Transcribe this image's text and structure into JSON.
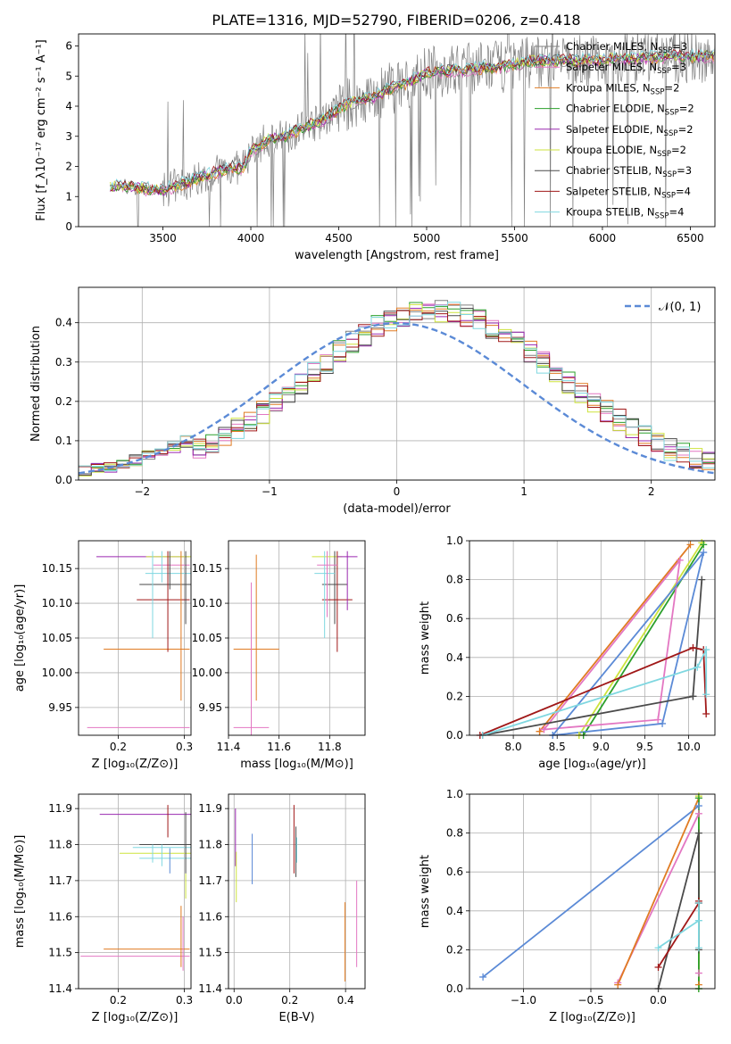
{
  "figure": {
    "suptitle": "PLATE=1316, MJD=52790, FIBERID=0206, z=0.418"
  },
  "legend_entries": [
    {
      "label": "Chabrier MILES, N",
      "sub": "SSP",
      "tail": "=3",
      "color": "#808080"
    },
    {
      "label": "Salpeter MILES, N",
      "sub": "SSP",
      "tail": "=3",
      "color": "#e377c2"
    },
    {
      "label": "Kroupa MILES, N",
      "sub": "SSP",
      "tail": "=2",
      "color": "#e07b22"
    },
    {
      "label": "Chabrier ELODIE, N",
      "sub": "SSP",
      "tail": "=2",
      "color": "#2ca02c"
    },
    {
      "label": "Salpeter ELODIE, N",
      "sub": "SSP",
      "tail": "=2",
      "color": "#9a28b0"
    },
    {
      "label": "Kroupa ELODIE, N",
      "sub": "SSP",
      "tail": "=2",
      "color": "#cde33c"
    },
    {
      "label": "Chabrier STELIB, N",
      "sub": "SSP",
      "tail": "=3",
      "color": "#4a4a4a"
    },
    {
      "label": "Salpeter STELIB, N",
      "sub": "SSP",
      "tail": "=4",
      "color": "#a01818"
    },
    {
      "label": "Kroupa STELIB, N",
      "sub": "SSP",
      "tail": "=4",
      "color": "#7fd7e0"
    }
  ],
  "chart_data": [
    {
      "id": "spectrum",
      "type": "line",
      "xlabel": "wavelength [Angstrom, rest frame]",
      "ylabel": "Flux [f_λ10⁻¹⁷ erg cm⁻² s⁻¹ A⁻¹]",
      "xlim": [
        3020,
        6640
      ],
      "ylim": [
        0,
        6.4
      ],
      "xticks": [
        3500,
        4000,
        4500,
        5000,
        5500,
        6000,
        6500
      ],
      "yticks": [
        0,
        1,
        2,
        3,
        4,
        5,
        6
      ],
      "continuum_x": [
        3200,
        3300,
        3400,
        3500,
        3600,
        3700,
        3800,
        3900,
        3950,
        4000,
        4100,
        4200,
        4300,
        4400,
        4500,
        4600,
        4700,
        4800,
        4900,
        5000,
        5200,
        5400,
        5600,
        5800,
        6000,
        6200,
        6400,
        6600
      ],
      "continuum_y": [
        1.3,
        1.35,
        1.25,
        1.2,
        1.4,
        1.6,
        1.8,
        2.0,
        1.9,
        2.5,
        2.9,
        3.0,
        3.3,
        3.5,
        3.9,
        4.2,
        4.3,
        4.6,
        4.8,
        5.1,
        5.2,
        5.3,
        5.5,
        5.5,
        5.55,
        5.6,
        5.65,
        5.65
      ]
    },
    {
      "id": "residuals",
      "type": "line",
      "xlabel": "(data-model)/error",
      "ylabel": "Normed distribution",
      "xlim": [
        -2.5,
        2.5
      ],
      "ylim": [
        0,
        0.49
      ],
      "xticks": [
        -2,
        -1,
        0,
        1,
        2
      ],
      "yticks": [
        0.0,
        0.1,
        0.2,
        0.3,
        0.4
      ],
      "legend_label": "𝒩(0, 1)",
      "gaussian": {
        "mean": 0,
        "sigma": 1,
        "color": "#5b8ad6"
      }
    },
    {
      "id": "z_age",
      "type": "scatter",
      "xlabel": "Z [log₁₀(Z/Z⊙)]",
      "ylabel": "age  [log₁₀(age/yr)]",
      "xlim": [
        0.14,
        0.31
      ],
      "ylim": [
        9.91,
        10.19
      ],
      "xticks": [
        0.2,
        0.3
      ],
      "yticks": [
        9.95,
        10.0,
        10.05,
        10.1,
        10.15
      ],
      "points": [
        {
          "x": 0.297,
          "y": 10.167,
          "xerr_lo": 0.13,
          "yerr": 0.0,
          "color": "#9a28b0"
        },
        {
          "x": 0.302,
          "y": 10.167,
          "xerr_lo": 0.06,
          "yerr": 0.0,
          "color": "#cde33c"
        },
        {
          "x": 0.298,
          "y": 10.155,
          "xerr_lo": 0.045,
          "yerr": 0.0,
          "color": "#e377c2"
        },
        {
          "x": 0.301,
          "y": 10.143,
          "xerr_lo": 0.06,
          "yerr": 0.0,
          "color": "#7fd7e0"
        },
        {
          "x": 0.302,
          "y": 10.127,
          "xerr_lo": 0.07,
          "yerr": 0.0,
          "color": "#4a4a4a"
        },
        {
          "x": 0.298,
          "y": 10.105,
          "xerr_lo": 0.07,
          "yerr": 0.0,
          "color": "#a01818"
        },
        {
          "x": 0.298,
          "y": 10.034,
          "xerr_lo": 0.12,
          "yerr": 0.0,
          "color": "#e07b22"
        },
        {
          "x": 0.298,
          "y": 9.921,
          "xerr_lo": 0.145,
          "yerr": 0.0,
          "color": "#e377c2"
        }
      ],
      "vlines": [
        {
          "x": 0.252,
          "y1": 10.05,
          "y2": 10.175,
          "color": "#7fd7e0"
        },
        {
          "x": 0.266,
          "y1": 10.13,
          "y2": 10.175,
          "color": "#7fd7e0"
        },
        {
          "x": 0.275,
          "y1": 10.03,
          "y2": 10.175,
          "color": "#a01818"
        },
        {
          "x": 0.278,
          "y1": 10.12,
          "y2": 10.175,
          "color": "#4a4a4a"
        },
        {
          "x": 0.295,
          "y1": 9.96,
          "y2": 10.175,
          "color": "#e07b22"
        },
        {
          "x": 0.302,
          "y1": 10.07,
          "y2": 10.175,
          "color": "#4a4a4a"
        }
      ]
    },
    {
      "id": "mass_age",
      "type": "scatter",
      "xlabel": "mass [log₁₀(M/M⊙)]",
      "ylabel": "",
      "xlim": [
        11.4,
        11.94
      ],
      "ylim": [
        9.91,
        10.19
      ],
      "xticks": [
        11.4,
        11.6,
        11.8
      ],
      "yticks": [
        9.95,
        10.0,
        10.05,
        10.1,
        10.15
      ],
      "crosses": [
        {
          "x": 11.51,
          "y": 10.034,
          "xh": 0.09,
          "y1": 9.96,
          "y2": 10.17,
          "color": "#e07b22"
        },
        {
          "x": 11.49,
          "y": 9.921,
          "xh": 0.07,
          "y1": 9.91,
          "y2": 10.13,
          "color": "#e377c2"
        },
        {
          "x": 11.79,
          "y": 10.167,
          "xh": 0.06,
          "y1": 10.14,
          "y2": 10.175,
          "color": "#cde33c"
        },
        {
          "x": 11.82,
          "y": 10.127,
          "xh": 0.05,
          "y1": 10.07,
          "y2": 10.175,
          "color": "#4a4a4a"
        },
        {
          "x": 11.83,
          "y": 10.105,
          "xh": 0.06,
          "y1": 10.03,
          "y2": 10.175,
          "color": "#a01818"
        },
        {
          "x": 11.87,
          "y": 10.167,
          "xh": 0.04,
          "y1": 10.09,
          "y2": 10.175,
          "color": "#9a28b0"
        },
        {
          "x": 11.78,
          "y": 10.143,
          "xh": 0.04,
          "y1": 10.05,
          "y2": 10.175,
          "color": "#7fd7e0"
        },
        {
          "x": 11.79,
          "y": 10.155,
          "xh": 0.04,
          "y1": 10.08,
          "y2": 10.175,
          "color": "#e377c2"
        }
      ]
    },
    {
      "id": "age_weight",
      "type": "line",
      "xlabel": "age  [log₁₀(age/yr)]",
      "ylabel": "mass weight",
      "xlim": [
        7.5,
        10.3
      ],
      "ylim": [
        0,
        1
      ],
      "xticks": [
        8.0,
        8.5,
        9.0,
        9.5,
        10.0
      ],
      "yticks": [
        0.0,
        0.2,
        0.4,
        0.6,
        0.8,
        1.0
      ],
      "series": [
        {
          "color": "#e07b22",
          "x": [
            8.3,
            10.02,
            8.3
          ],
          "y": [
            0.02,
            0.98,
            0.02
          ]
        },
        {
          "color": "#cde33c",
          "x": [
            8.75,
            10.15,
            8.75
          ],
          "y": [
            0.0,
            0.99,
            0.0
          ]
        },
        {
          "color": "#2ca02c",
          "x": [
            8.8,
            10.17
          ],
          "y": [
            0.0,
            0.98
          ]
        },
        {
          "color": "#e377c2",
          "x": [
            8.35,
            9.65,
            9.9,
            8.35
          ],
          "y": [
            0.03,
            0.08,
            0.9,
            0.03
          ]
        },
        {
          "color": "#5b8ad6",
          "x": [
            8.45,
            9.7,
            10.17,
            8.45
          ],
          "y": [
            0.0,
            0.06,
            0.94,
            0.0
          ]
        },
        {
          "color": "#4a4a4a",
          "x": [
            7.65,
            10.05,
            10.15,
            10.05
          ],
          "y": [
            0.0,
            0.2,
            0.8,
            0.2
          ]
        },
        {
          "color": "#a01818",
          "x": [
            7.62,
            10.05,
            10.17,
            10.2
          ],
          "y": [
            0.0,
            0.45,
            0.44,
            0.11
          ]
        },
        {
          "color": "#7fd7e0",
          "x": [
            7.65,
            10.1,
            10.2,
            10.2
          ],
          "y": [
            0.0,
            0.35,
            0.44,
            0.21
          ]
        }
      ]
    },
    {
      "id": "z_mass",
      "type": "scatter",
      "xlabel": "Z [log₁₀(Z/Z⊙)]",
      "ylabel": "mass [log₁₀(M/M⊙)]",
      "xlim": [
        0.14,
        0.31
      ],
      "ylim": [
        11.4,
        11.94
      ],
      "xticks": [
        0.2,
        0.3
      ],
      "yticks": [
        11.4,
        11.5,
        11.6,
        11.7,
        11.8,
        11.9
      ],
      "points": [
        {
          "x": 0.302,
          "y": 11.884,
          "xerr_lo": 0.13,
          "color": "#9a28b0"
        },
        {
          "x": 0.302,
          "y": 11.8,
          "xerr_lo": 0.07,
          "color": "#4a4a4a"
        },
        {
          "x": 0.302,
          "y": 11.792,
          "xerr_lo": 0.08,
          "color": "#7fd7e0"
        },
        {
          "x": 0.302,
          "y": 11.776,
          "xerr_lo": 0.1,
          "color": "#cde33c"
        },
        {
          "x": 0.302,
          "y": 11.762,
          "xerr_lo": 0.07,
          "color": "#7fd7e0"
        },
        {
          "x": 0.298,
          "y": 11.51,
          "xerr_lo": 0.12,
          "color": "#e07b22"
        },
        {
          "x": 0.298,
          "y": 11.49,
          "xerr_lo": 0.155,
          "color": "#e377c2"
        }
      ],
      "vlines": [
        {
          "x": 0.252,
          "y1": 11.75,
          "y2": 11.8,
          "color": "#7fd7e0"
        },
        {
          "x": 0.266,
          "y1": 11.74,
          "y2": 11.8,
          "color": "#7fd7e0"
        },
        {
          "x": 0.275,
          "y1": 11.82,
          "y2": 11.91,
          "color": "#a01818"
        },
        {
          "x": 0.278,
          "y1": 11.72,
          "y2": 11.79,
          "color": "#5b8ad6"
        },
        {
          "x": 0.295,
          "y1": 11.46,
          "y2": 11.63,
          "color": "#e07b22"
        },
        {
          "x": 0.298,
          "y1": 11.45,
          "y2": 11.6,
          "color": "#e377c2"
        },
        {
          "x": 0.302,
          "y1": 11.65,
          "y2": 11.72,
          "color": "#cde33c"
        },
        {
          "x": 0.302,
          "y1": 11.72,
          "y2": 11.89,
          "color": "#4a4a4a"
        }
      ]
    },
    {
      "id": "ebv_mass",
      "type": "scatter",
      "xlabel": "E(B-V)",
      "ylabel": "",
      "xlim": [
        -0.02,
        0.47
      ],
      "ylim": [
        11.4,
        11.94
      ],
      "xticks": [
        0.0,
        0.2,
        0.4
      ],
      "yticks": [
        11.4,
        11.5,
        11.6,
        11.7,
        11.8,
        11.9
      ],
      "vlines": [
        {
          "x": 0.005,
          "y1": 11.74,
          "y2": 11.9,
          "color": "#9a28b0"
        },
        {
          "x": 0.008,
          "y1": 11.64,
          "y2": 11.78,
          "color": "#cde33c"
        },
        {
          "x": 0.065,
          "y1": 11.69,
          "y2": 11.83,
          "color": "#5b8ad6"
        },
        {
          "x": 0.215,
          "y1": 11.72,
          "y2": 11.91,
          "color": "#a01818"
        },
        {
          "x": 0.222,
          "y1": 11.71,
          "y2": 11.85,
          "color": "#4a4a4a"
        },
        {
          "x": 0.225,
          "y1": 11.75,
          "y2": 11.82,
          "color": "#7fd7e0"
        },
        {
          "x": 0.398,
          "y1": 11.42,
          "y2": 11.64,
          "color": "#e07b22"
        },
        {
          "x": 0.44,
          "y1": 11.46,
          "y2": 11.7,
          "color": "#e377c2"
        }
      ]
    },
    {
      "id": "z_weight",
      "type": "line",
      "xlabel": "Z [log₁₀(Z/Z⊙)]",
      "ylabel": "mass weight",
      "xlim": [
        -1.4,
        0.42
      ],
      "ylim": [
        0,
        1
      ],
      "xticks": [
        -1.0,
        -0.5,
        0.0
      ],
      "yticks": [
        0.0,
        0.2,
        0.4,
        0.6,
        0.8,
        1.0
      ],
      "series": [
        {
          "color": "#5b8ad6",
          "x": [
            -1.3,
            0.3,
            0.3
          ],
          "y": [
            0.06,
            0.94,
            0.0
          ]
        },
        {
          "color": "#e377c2",
          "x": [
            -0.3,
            0.3,
            0.3
          ],
          "y": [
            0.03,
            0.9,
            0.08
          ]
        },
        {
          "color": "#e07b22",
          "x": [
            -0.3,
            0.3,
            0.3
          ],
          "y": [
            0.02,
            0.98,
            0.02
          ]
        },
        {
          "color": "#cde33c",
          "x": [
            0.3,
            0.3
          ],
          "y": [
            0.0,
            0.99
          ]
        },
        {
          "color": "#2ca02c",
          "x": [
            0.3,
            0.3
          ],
          "y": [
            0.0,
            0.98
          ]
        },
        {
          "color": "#4a4a4a",
          "x": [
            0.0,
            0.3,
            0.3,
            0.3
          ],
          "y": [
            0.0,
            0.8,
            0.2,
            0.44
          ]
        },
        {
          "color": "#a01818",
          "x": [
            0.0,
            0.3,
            0.3
          ],
          "y": [
            0.11,
            0.44,
            0.45
          ]
        },
        {
          "color": "#7fd7e0",
          "x": [
            0.0,
            0.3,
            0.3,
            0.3
          ],
          "y": [
            0.21,
            0.35,
            0.44,
            0.21
          ]
        }
      ]
    }
  ]
}
